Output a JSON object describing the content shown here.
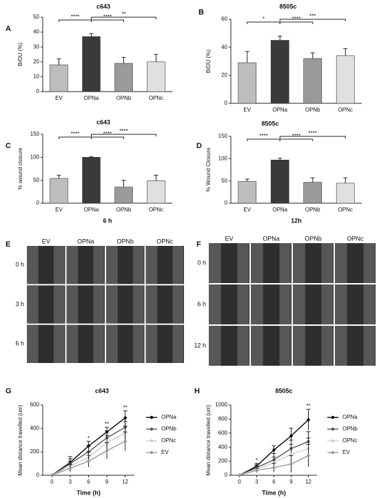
{
  "chart_data": [
    {
      "panel": "A",
      "type": "bar",
      "title": "c643",
      "y_label": "BrDU (%)",
      "categories": [
        "EV",
        "OPNa",
        "OPNb",
        "OPNc"
      ],
      "values": [
        18,
        37,
        19,
        20
      ],
      "errors": [
        4,
        2,
        4,
        5
      ],
      "colors": [
        "#bdbdbd",
        "#3a3a3a",
        "#9a9a9a",
        "#e0e0e0"
      ],
      "ylim": [
        0,
        50
      ],
      "yticks": [
        0,
        10,
        20,
        30,
        40,
        50
      ],
      "significance": [
        {
          "between": [
            "EV",
            "OPNa"
          ],
          "label": "****"
        },
        {
          "between": [
            "OPNa",
            "OPNb"
          ],
          "label": "****"
        },
        {
          "between": [
            "OPNa",
            "OPNc"
          ],
          "label": "**"
        }
      ]
    },
    {
      "panel": "B",
      "type": "bar",
      "title": "8505c",
      "y_label": "BrDU (%)",
      "categories": [
        "EV",
        "OPNa",
        "OPNb",
        "OPNc"
      ],
      "values": [
        29,
        45,
        32,
        34
      ],
      "errors": [
        8,
        3,
        4,
        5
      ],
      "colors": [
        "#bdbdbd",
        "#3a3a3a",
        "#9a9a9a",
        "#e0e0e0"
      ],
      "ylim": [
        0,
        60
      ],
      "yticks": [
        0,
        20,
        40,
        60
      ],
      "significance": [
        {
          "between": [
            "EV",
            "OPNa"
          ],
          "label": "*"
        },
        {
          "between": [
            "OPNa",
            "OPNb"
          ],
          "label": "****"
        },
        {
          "between": [
            "OPNa",
            "OPNc"
          ],
          "label": "***"
        }
      ]
    },
    {
      "panel": "C",
      "type": "bar",
      "title": "c643",
      "y_label": "% wound closure",
      "x_label": "6 h",
      "categories": [
        "EV",
        "OPNa",
        "OPNb",
        "OPNc"
      ],
      "values": [
        54,
        100,
        35,
        49
      ],
      "errors": [
        7,
        1,
        15,
        12
      ],
      "colors": [
        "#bdbdbd",
        "#3a3a3a",
        "#9a9a9a",
        "#e0e0e0"
      ],
      "ylim": [
        0,
        150
      ],
      "yticks": [
        0,
        50,
        100,
        150
      ],
      "significance": [
        {
          "between": [
            "EV",
            "OPNa"
          ],
          "label": "****"
        },
        {
          "between": [
            "OPNa",
            "OPNb"
          ],
          "label": "****"
        },
        {
          "between": [
            "OPNa",
            "OPNc"
          ],
          "label": "****"
        }
      ]
    },
    {
      "panel": "D",
      "type": "bar",
      "title": "8505c",
      "y_label": "% Wound Closure",
      "x_label": "12h",
      "categories": [
        "EV",
        "OPNa",
        "OPNb",
        "OPNc"
      ],
      "values": [
        49,
        97,
        47,
        45
      ],
      "errors": [
        5,
        4,
        10,
        12
      ],
      "colors": [
        "#bdbdbd",
        "#3a3a3a",
        "#9a9a9a",
        "#e0e0e0"
      ],
      "ylim": [
        0,
        150
      ],
      "yticks": [
        0,
        50,
        100,
        150
      ],
      "significance": [
        {
          "between": [
            "EV",
            "OPNa"
          ],
          "label": "****"
        },
        {
          "between": [
            "OPNa",
            "OPNb"
          ],
          "label": "****"
        },
        {
          "between": [
            "OPNa",
            "OPNc"
          ],
          "label": "****"
        }
      ]
    },
    {
      "panel": "G",
      "type": "line",
      "title": "c643",
      "y_label": "Mean distance travelled (um)",
      "x_label": "Time (h)",
      "x": [
        0,
        3,
        6,
        9,
        12
      ],
      "xlim": [
        -1.5,
        13.5
      ],
      "xticks": [
        0,
        3,
        6,
        9,
        12
      ],
      "ylim": [
        0,
        600
      ],
      "yticks": [
        0,
        200,
        400,
        600
      ],
      "series": [
        {
          "name": "OPNa",
          "color": "#000000",
          "values": [
            0,
            110,
            250,
            370,
            490
          ],
          "errors": [
            0,
            50,
            40,
            40,
            60
          ]
        },
        {
          "name": "OPNb",
          "color": "#555555",
          "values": [
            0,
            100,
            200,
            320,
            410
          ],
          "errors": [
            0,
            40,
            50,
            60,
            50
          ]
        },
        {
          "name": "OPNc",
          "color": "#cccccc",
          "values": [
            0,
            80,
            150,
            280,
            360
          ],
          "errors": [
            0,
            40,
            50,
            60,
            60
          ]
        },
        {
          "name": "EV",
          "color": "#999999",
          "values": [
            0,
            60,
            120,
            210,
            290
          ],
          "errors": [
            0,
            30,
            50,
            70,
            80
          ]
        }
      ],
      "significance": [
        {
          "x": 6,
          "label": "*"
        },
        {
          "x": 9,
          "label": "**"
        },
        {
          "x": 12,
          "label": "**"
        }
      ]
    },
    {
      "panel": "H",
      "type": "line",
      "title": "8505c",
      "y_label": "Mean distance travelled (um)",
      "x_label": "Time (h)",
      "x": [
        0,
        3,
        6,
        9,
        12
      ],
      "xlim": [
        -1.5,
        13.5
      ],
      "xticks": [
        0,
        3,
        6,
        9,
        12
      ],
      "ylim": [
        0,
        1000
      ],
      "yticks": [
        0,
        200,
        400,
        600,
        800,
        1000
      ],
      "series": [
        {
          "name": "OPNa",
          "color": "#000000",
          "values": [
            0,
            130,
            360,
            560,
            790
          ],
          "errors": [
            0,
            40,
            60,
            110,
            150
          ]
        },
        {
          "name": "OPNb",
          "color": "#555555",
          "values": [
            0,
            110,
            220,
            380,
            480
          ],
          "errors": [
            0,
            40,
            90,
            120,
            140
          ]
        },
        {
          "name": "OPNc",
          "color": "#cccccc",
          "values": [
            0,
            90,
            180,
            300,
            380
          ],
          "errors": [
            0,
            40,
            80,
            140,
            150
          ]
        },
        {
          "name": "EV",
          "color": "#999999",
          "values": [
            0,
            70,
            110,
            160,
            280
          ],
          "errors": [
            0,
            30,
            60,
            120,
            160
          ]
        }
      ],
      "significance": [
        {
          "x": 3,
          "label": "*"
        },
        {
          "x": 12,
          "label": "**"
        }
      ]
    }
  ],
  "image_panels": [
    {
      "panel": "E",
      "columns": [
        "EV",
        "OPNa",
        "OPNb",
        "OPNc"
      ],
      "rows": [
        "0 h",
        "3 h",
        "6 h"
      ]
    },
    {
      "panel": "F",
      "columns": [
        "EV",
        "OPNa",
        "OPNb",
        "OPNc"
      ],
      "rows": [
        "0 h",
        "6 h",
        "12 h"
      ]
    }
  ]
}
